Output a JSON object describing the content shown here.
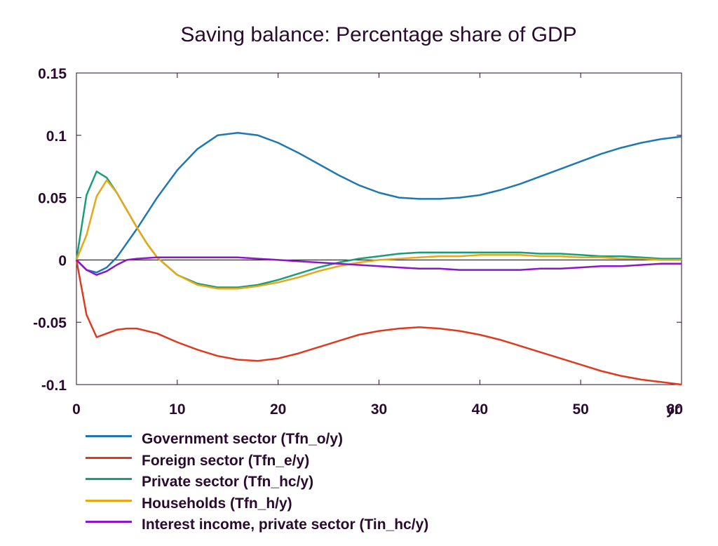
{
  "chart_data": {
    "type": "line",
    "title": "Saving balance: Percentage share of GDP",
    "xlabel": "",
    "ylabel": "",
    "x_unit_label": "yr",
    "xlim": [
      0,
      60
    ],
    "ylim": [
      -0.1,
      0.15
    ],
    "x_ticks": [
      0,
      10,
      20,
      30,
      40,
      50,
      60
    ],
    "x_tick_labels": [
      "0",
      "10",
      "20",
      "30",
      "40",
      "50",
      "60"
    ],
    "y_ticks": [
      0.15,
      0.1,
      0.05,
      0,
      -0.05,
      -0.1
    ],
    "y_tick_labels": [
      "0.15",
      "0.1",
      "0.05",
      "0",
      "-0.05",
      "-0.1"
    ],
    "grid": false,
    "zero_line": true,
    "legend_position": "bottom",
    "series": [
      {
        "name": "Government sector (Tfn_o/y)",
        "color": "#1f78b4",
        "x": [
          0,
          1,
          2,
          3,
          4,
          6,
          8,
          10,
          12,
          14,
          16,
          18,
          20,
          22,
          24,
          26,
          28,
          30,
          32,
          34,
          36,
          38,
          40,
          42,
          44,
          46,
          48,
          50,
          52,
          54,
          56,
          58,
          60
        ],
        "y": [
          0,
          -0.008,
          -0.01,
          -0.006,
          0.002,
          0.025,
          0.05,
          0.072,
          0.089,
          0.1,
          0.102,
          0.1,
          0.094,
          0.086,
          0.077,
          0.068,
          0.06,
          0.054,
          0.05,
          0.049,
          0.049,
          0.05,
          0.052,
          0.056,
          0.061,
          0.067,
          0.073,
          0.079,
          0.085,
          0.09,
          0.094,
          0.097,
          0.099
        ]
      },
      {
        "name": "Foreign sector (Tfn_e/y)",
        "color": "#e03a1e",
        "x": [
          0,
          1,
          2,
          3,
          4,
          5,
          6,
          8,
          10,
          12,
          14,
          16,
          18,
          20,
          22,
          24,
          26,
          28,
          30,
          32,
          34,
          36,
          38,
          40,
          42,
          44,
          46,
          48,
          50,
          52,
          54,
          56,
          58,
          60
        ],
        "y": [
          0,
          -0.044,
          -0.062,
          -0.059,
          -0.056,
          -0.055,
          -0.055,
          -0.059,
          -0.066,
          -0.072,
          -0.077,
          -0.08,
          -0.081,
          -0.079,
          -0.075,
          -0.07,
          -0.065,
          -0.06,
          -0.057,
          -0.055,
          -0.054,
          -0.055,
          -0.057,
          -0.06,
          -0.064,
          -0.069,
          -0.074,
          -0.079,
          -0.084,
          -0.089,
          -0.093,
          -0.096,
          -0.098,
          -0.1
        ]
      },
      {
        "name": "Private sector (Tfn_hc/y)",
        "color": "#1a9e77",
        "x": [
          0,
          1,
          2,
          3,
          4,
          5,
          6,
          7,
          8,
          10,
          12,
          14,
          16,
          18,
          20,
          22,
          24,
          26,
          28,
          30,
          32,
          34,
          36,
          38,
          40,
          42,
          44,
          46,
          48,
          50,
          52,
          54,
          56,
          58,
          60
        ],
        "y": [
          0,
          0.052,
          0.071,
          0.066,
          0.054,
          0.04,
          0.026,
          0.013,
          0.002,
          -0.012,
          -0.019,
          -0.022,
          -0.022,
          -0.02,
          -0.016,
          -0.011,
          -0.006,
          -0.002,
          0.001,
          0.003,
          0.005,
          0.006,
          0.006,
          0.006,
          0.006,
          0.006,
          0.006,
          0.005,
          0.005,
          0.004,
          0.003,
          0.003,
          0.002,
          0.001,
          0.001
        ]
      },
      {
        "name": "Households (Tfn_h/y)",
        "color": "#e6a817",
        "x": [
          0,
          1,
          2,
          3,
          4,
          5,
          6,
          7,
          8,
          10,
          12,
          14,
          16,
          18,
          20,
          22,
          24,
          26,
          28,
          30,
          32,
          34,
          36,
          38,
          40,
          42,
          44,
          46,
          48,
          50,
          52,
          54,
          56,
          58,
          60
        ],
        "y": [
          0,
          0.02,
          0.051,
          0.064,
          0.054,
          0.04,
          0.026,
          0.013,
          0.002,
          -0.012,
          -0.02,
          -0.023,
          -0.023,
          -0.021,
          -0.018,
          -0.014,
          -0.009,
          -0.005,
          -0.002,
          0,
          0.001,
          0.002,
          0.003,
          0.003,
          0.004,
          0.004,
          0.004,
          0.003,
          0.003,
          0.002,
          0.002,
          0.001,
          0.001,
          0,
          0
        ]
      },
      {
        "name": "Interest income, private sector (Tin_hc/y)",
        "color": "#8b17c9",
        "x": [
          0,
          1,
          2,
          3,
          4,
          5,
          6,
          8,
          10,
          12,
          14,
          16,
          18,
          20,
          22,
          24,
          26,
          28,
          30,
          32,
          34,
          36,
          38,
          40,
          42,
          44,
          46,
          48,
          50,
          52,
          54,
          56,
          58,
          60
        ],
        "y": [
          0,
          -0.008,
          -0.012,
          -0.009,
          -0.004,
          0,
          0.001,
          0.002,
          0.002,
          0.002,
          0.002,
          0.002,
          0.001,
          0,
          -0.001,
          -0.002,
          -0.003,
          -0.004,
          -0.005,
          -0.006,
          -0.007,
          -0.007,
          -0.008,
          -0.008,
          -0.008,
          -0.008,
          -0.007,
          -0.007,
          -0.006,
          -0.005,
          -0.005,
          -0.004,
          -0.003,
          -0.003
        ]
      }
    ]
  }
}
